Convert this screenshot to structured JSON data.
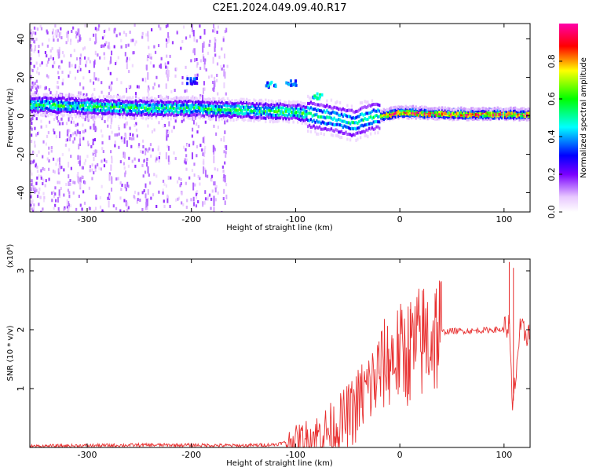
{
  "title": "C2E1.2024.049.09.40.R17",
  "chart_data": [
    {
      "type": "heatmap",
      "xlabel": "Height of straight line (km)",
      "ylabel": "Frequency (Hz)",
      "xlim": [
        -355,
        125
      ],
      "ylim": [
        -50,
        48
      ],
      "x_ticks": [
        -300,
        -200,
        -100,
        0,
        100
      ],
      "y_ticks": [
        -40,
        -20,
        0,
        20,
        40
      ],
      "colorbar": {
        "label": "Normalized spectral amplitude",
        "range": [
          0,
          1
        ],
        "ticks": [
          0.0,
          0.2,
          0.4,
          0.6,
          0.8
        ]
      },
      "ridge": [
        {
          "x": -355,
          "y": 6
        },
        {
          "x": -300,
          "y": 5
        },
        {
          "x": -250,
          "y": 4
        },
        {
          "x": -200,
          "y": 4
        },
        {
          "x": -150,
          "y": 3
        },
        {
          "x": -100,
          "y": 2
        },
        {
          "x": -80,
          "y": 0
        },
        {
          "x": -60,
          "y": -2
        },
        {
          "x": -45,
          "y": -4
        },
        {
          "x": -30,
          "y": -1
        },
        {
          "x": -10,
          "y": 1
        },
        {
          "x": 0,
          "y": 2
        },
        {
          "x": 50,
          "y": 1
        },
        {
          "x": 100,
          "y": 1
        },
        {
          "x": 125,
          "y": 1
        }
      ],
      "features": [
        {
          "x": -200,
          "y": 18,
          "amplitude": 0.35
        },
        {
          "x": -125,
          "y": 16,
          "amplitude": 0.45
        },
        {
          "x": -105,
          "y": 17,
          "amplitude": 0.4
        },
        {
          "x": -80,
          "y": 10,
          "amplitude": 0.55
        }
      ]
    },
    {
      "type": "line",
      "xlabel": "Height of straight line (km)",
      "ylabel": "SNR (10 * v/v)",
      "y_multiplier": "(x10⁴)",
      "xlim": [
        -355,
        125
      ],
      "ylim": [
        0,
        3.2
      ],
      "x_ticks": [
        -300,
        -200,
        -100,
        0,
        100
      ],
      "y_ticks": [
        1,
        2,
        3
      ],
      "color": "#e83030",
      "series": [
        {
          "values": [
            {
              "x": -355,
              "y": 0.02
            },
            {
              "x": -300,
              "y": 0.03
            },
            {
              "x": -250,
              "y": 0.04
            },
            {
              "x": -200,
              "y": 0.04
            },
            {
              "x": -150,
              "y": 0.03
            },
            {
              "x": -120,
              "y": 0.05
            },
            {
              "x": -100,
              "y": 0.12
            },
            {
              "x": -80,
              "y": 0.2
            },
            {
              "x": -60,
              "y": 0.35
            },
            {
              "x": -45,
              "y": 0.6
            },
            {
              "x": -35,
              "y": 0.9
            },
            {
              "x": -25,
              "y": 1.1
            },
            {
              "x": -15,
              "y": 1.4
            },
            {
              "x": -5,
              "y": 1.55
            },
            {
              "x": 5,
              "y": 1.6
            },
            {
              "x": 15,
              "y": 1.7
            },
            {
              "x": 25,
              "y": 1.85
            },
            {
              "x": 35,
              "y": 1.95
            },
            {
              "x": 50,
              "y": 1.98
            },
            {
              "x": 70,
              "y": 1.98
            },
            {
              "x": 90,
              "y": 2.0
            },
            {
              "x": 100,
              "y": 2.0
            },
            {
              "x": 105,
              "y": 2.1
            },
            {
              "x": 108,
              "y": 0.6
            },
            {
              "x": 115,
              "y": 1.95
            },
            {
              "x": 125,
              "y": 1.95
            }
          ]
        }
      ],
      "spikes": [
        {
          "x": 10,
          "y": 2.35
        },
        {
          "x": -20,
          "y": 1.8
        },
        {
          "x": 105,
          "y": 3.15
        },
        {
          "x": 109,
          "y": 3.05
        }
      ]
    }
  ]
}
